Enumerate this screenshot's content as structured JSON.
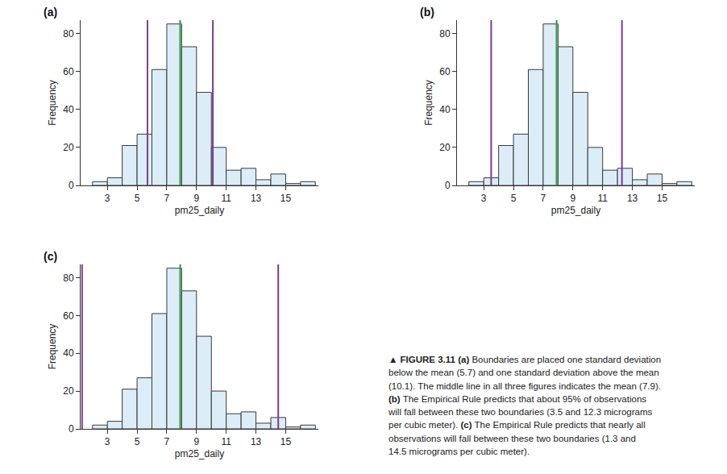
{
  "chart_data": [
    {
      "type": "histogram",
      "title": "(a)",
      "xlabel": "pm25_daily",
      "ylabel": "Frequency",
      "bins": [
        2,
        3,
        4,
        5,
        6,
        7,
        8,
        9,
        10,
        11,
        12,
        13,
        14,
        15,
        16,
        17
      ],
      "counts": [
        2,
        4,
        21,
        27,
        61,
        85,
        73,
        49,
        20,
        8,
        9,
        3,
        6,
        1,
        2
      ],
      "color": "#dcedf8",
      "mean": 7.9,
      "boundaries": [
        5.7,
        10.1
      ],
      "xlim": [
        1.2,
        17.2
      ],
      "xticks": [
        3,
        5,
        7,
        9,
        11,
        13,
        15
      ],
      "ylim": [
        0,
        87
      ],
      "yticks": [
        0,
        20,
        40,
        60,
        80
      ],
      "grid": false
    },
    {
      "type": "histogram",
      "title": "(b)",
      "xlabel": "pm25_daily",
      "ylabel": "Frequency",
      "bins": [
        2,
        3,
        4,
        5,
        6,
        7,
        8,
        9,
        10,
        11,
        12,
        13,
        14,
        15,
        16,
        17
      ],
      "counts": [
        2,
        4,
        21,
        27,
        61,
        85,
        73,
        49,
        20,
        8,
        9,
        3,
        6,
        1,
        2
      ],
      "color": "#dcedf8",
      "mean": 7.9,
      "boundaries": [
        3.5,
        12.3
      ],
      "xlim": [
        1.2,
        17.2
      ],
      "xticks": [
        3,
        5,
        7,
        9,
        11,
        13,
        15
      ],
      "ylim": [
        0,
        87
      ],
      "yticks": [
        0,
        20,
        40,
        60,
        80
      ],
      "grid": false
    },
    {
      "type": "histogram",
      "title": "(c)",
      "xlabel": "pm25_daily",
      "ylabel": "Frequency",
      "bins": [
        2,
        3,
        4,
        5,
        6,
        7,
        8,
        9,
        10,
        11,
        12,
        13,
        14,
        15,
        16,
        17
      ],
      "counts": [
        2,
        4,
        21,
        27,
        61,
        85,
        73,
        49,
        20,
        8,
        9,
        3,
        6,
        1,
        2
      ],
      "color": "#dcedf8",
      "mean": 7.9,
      "boundaries": [
        1.3,
        14.5
      ],
      "xlim": [
        1.2,
        17.2
      ],
      "xticks": [
        3,
        5,
        7,
        9,
        11,
        13,
        15
      ],
      "ylim": [
        0,
        87
      ],
      "yticks": [
        0,
        20,
        40,
        60,
        80
      ],
      "grid": false
    }
  ],
  "caption": [
    [
      {
        "text": "▲ FIGURE 3.11 ",
        "bold": true
      },
      {
        "text": "(a)",
        "bold": true
      },
      {
        "text": " Boundaries are placed one standard deviation",
        "bold": false
      }
    ],
    [
      {
        "text": "below the mean (5.7) and one standard deviation above the mean",
        "bold": false
      }
    ],
    [
      {
        "text": "(10.1). The middle line in all three figures indicates the mean (7.9).",
        "bold": false
      }
    ],
    [
      {
        "text": "(b)",
        "bold": true
      },
      {
        "text": " The Empirical Rule predicts that about 95% of observations",
        "bold": false
      }
    ],
    [
      {
        "text": "will fall between these two boundaries (3.5 and 12.3 micrograms",
        "bold": false
      }
    ],
    [
      {
        "text": "per cubic meter). ",
        "bold": false
      },
      {
        "text": "(c)",
        "bold": true
      },
      {
        "text": " The Empirical Rule predicts that nearly all",
        "bold": false
      }
    ],
    [
      {
        "text": "observations will fall between these two boundaries (1.3 and",
        "bold": false
      }
    ],
    [
      {
        "text": "14.5 micrograms per cubic meter).",
        "bold": false
      }
    ]
  ]
}
